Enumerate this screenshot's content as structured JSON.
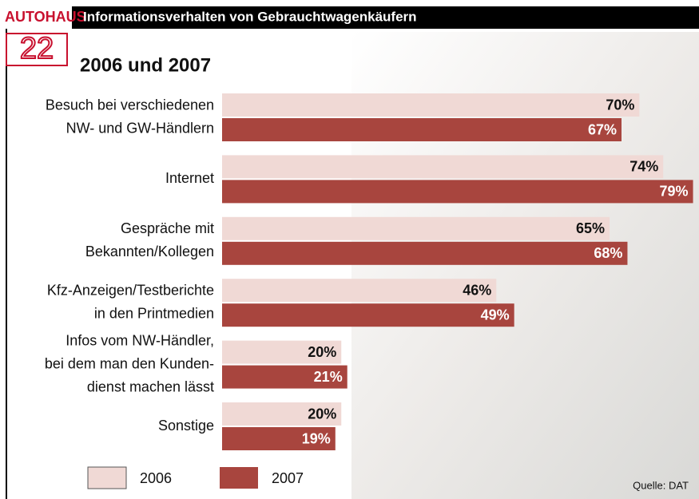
{
  "brand": "AUTOHAUS",
  "issue": "22",
  "chart_data": {
    "type": "hbar",
    "title": "Informationsverhalten von Gebrauchtwagenkäufern",
    "subtitle": "2006 und 2007",
    "categories": [
      [
        "Besuch bei verschiedenen",
        "NW- und GW-Händlern"
      ],
      [
        "Internet"
      ],
      [
        "Gespräche mit",
        "Bekannten/Kollegen"
      ],
      [
        "Kfz-Anzeigen/Testberichte",
        "in den Printmedien"
      ],
      [
        "Infos vom NW-Händler,",
        "bei dem man den Kunden-",
        "dienst machen lässt"
      ],
      [
        "Sonstige"
      ]
    ],
    "series": [
      {
        "name": "2006",
        "color": "#f0d9d5",
        "values": [
          70,
          74,
          65,
          46,
          20,
          20
        ],
        "value_labels": [
          "70%",
          "74%",
          "65%",
          "46%",
          "20%",
          "20%"
        ]
      },
      {
        "name": "2007",
        "color": "#a8453e",
        "values": [
          67,
          79,
          68,
          49,
          21,
          19
        ],
        "value_labels": [
          "67%",
          "79%",
          "68%",
          "49%",
          "21%",
          "19%"
        ]
      }
    ],
    "xlim": [
      0,
      80
    ],
    "source": "Quelle: DAT"
  }
}
